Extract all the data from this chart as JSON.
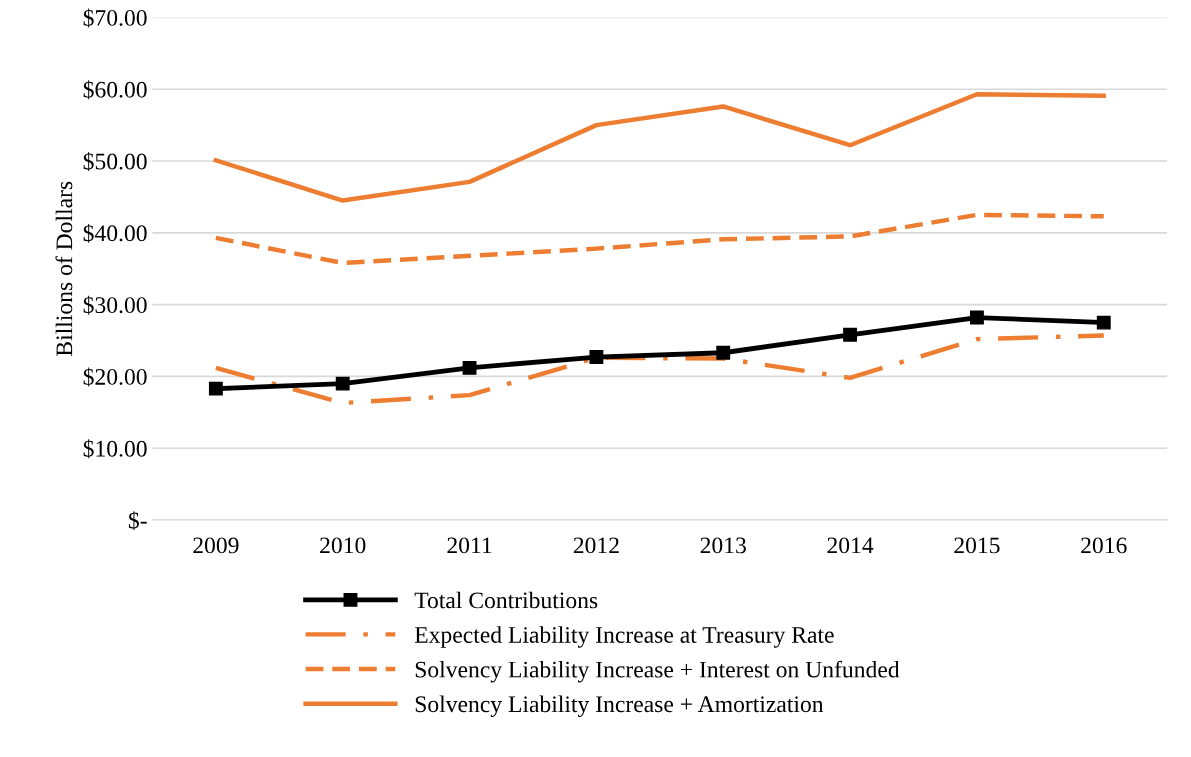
{
  "chart_data": {
    "type": "line",
    "ylabel": "Billions of Dollars",
    "categories": [
      "2009",
      "2010",
      "2011",
      "2012",
      "2013",
      "2014",
      "2015",
      "2016"
    ],
    "series": [
      {
        "name": "Total Contributions",
        "color": "#000000",
        "marker": "square",
        "line_style": "solid",
        "values": [
          18.3,
          19.0,
          21.2,
          22.7,
          23.3,
          25.8,
          28.2,
          27.5
        ]
      },
      {
        "name": "Expected Liability Increase at Treasury Rate",
        "color": "#ed7d31",
        "marker": "none",
        "line_style": "dashdot",
        "values": [
          21.2,
          16.3,
          17.4,
          22.6,
          22.5,
          19.8,
          25.2,
          25.7
        ]
      },
      {
        "name": "Solvency Liability Increase + Interest on Unfunded",
        "color": "#ed7d31",
        "marker": "none",
        "line_style": "dashed",
        "values": [
          39.3,
          35.8,
          36.8,
          37.8,
          39.1,
          39.5,
          42.5,
          42.3
        ]
      },
      {
        "name": "Solvency Liability Increase + Amortization",
        "color": "#ed7d31",
        "marker": "none",
        "line_style": "solid",
        "values": [
          50.1,
          44.5,
          47.1,
          55.0,
          57.6,
          52.2,
          59.3,
          59.1
        ]
      }
    ],
    "ylim": [
      0,
      70
    ],
    "yticks": [
      {
        "value": 0,
        "label": "$-"
      },
      {
        "value": 10,
        "label": "$10.00"
      },
      {
        "value": 20,
        "label": "$20.00"
      },
      {
        "value": 30,
        "label": "$30.00"
      },
      {
        "value": 40,
        "label": "$40.00"
      },
      {
        "value": 50,
        "label": "$50.00"
      },
      {
        "value": 60,
        "label": "$60.00"
      },
      {
        "value": 70,
        "label": "$70.00"
      }
    ],
    "grid": "y",
    "legend": "bottom"
  }
}
